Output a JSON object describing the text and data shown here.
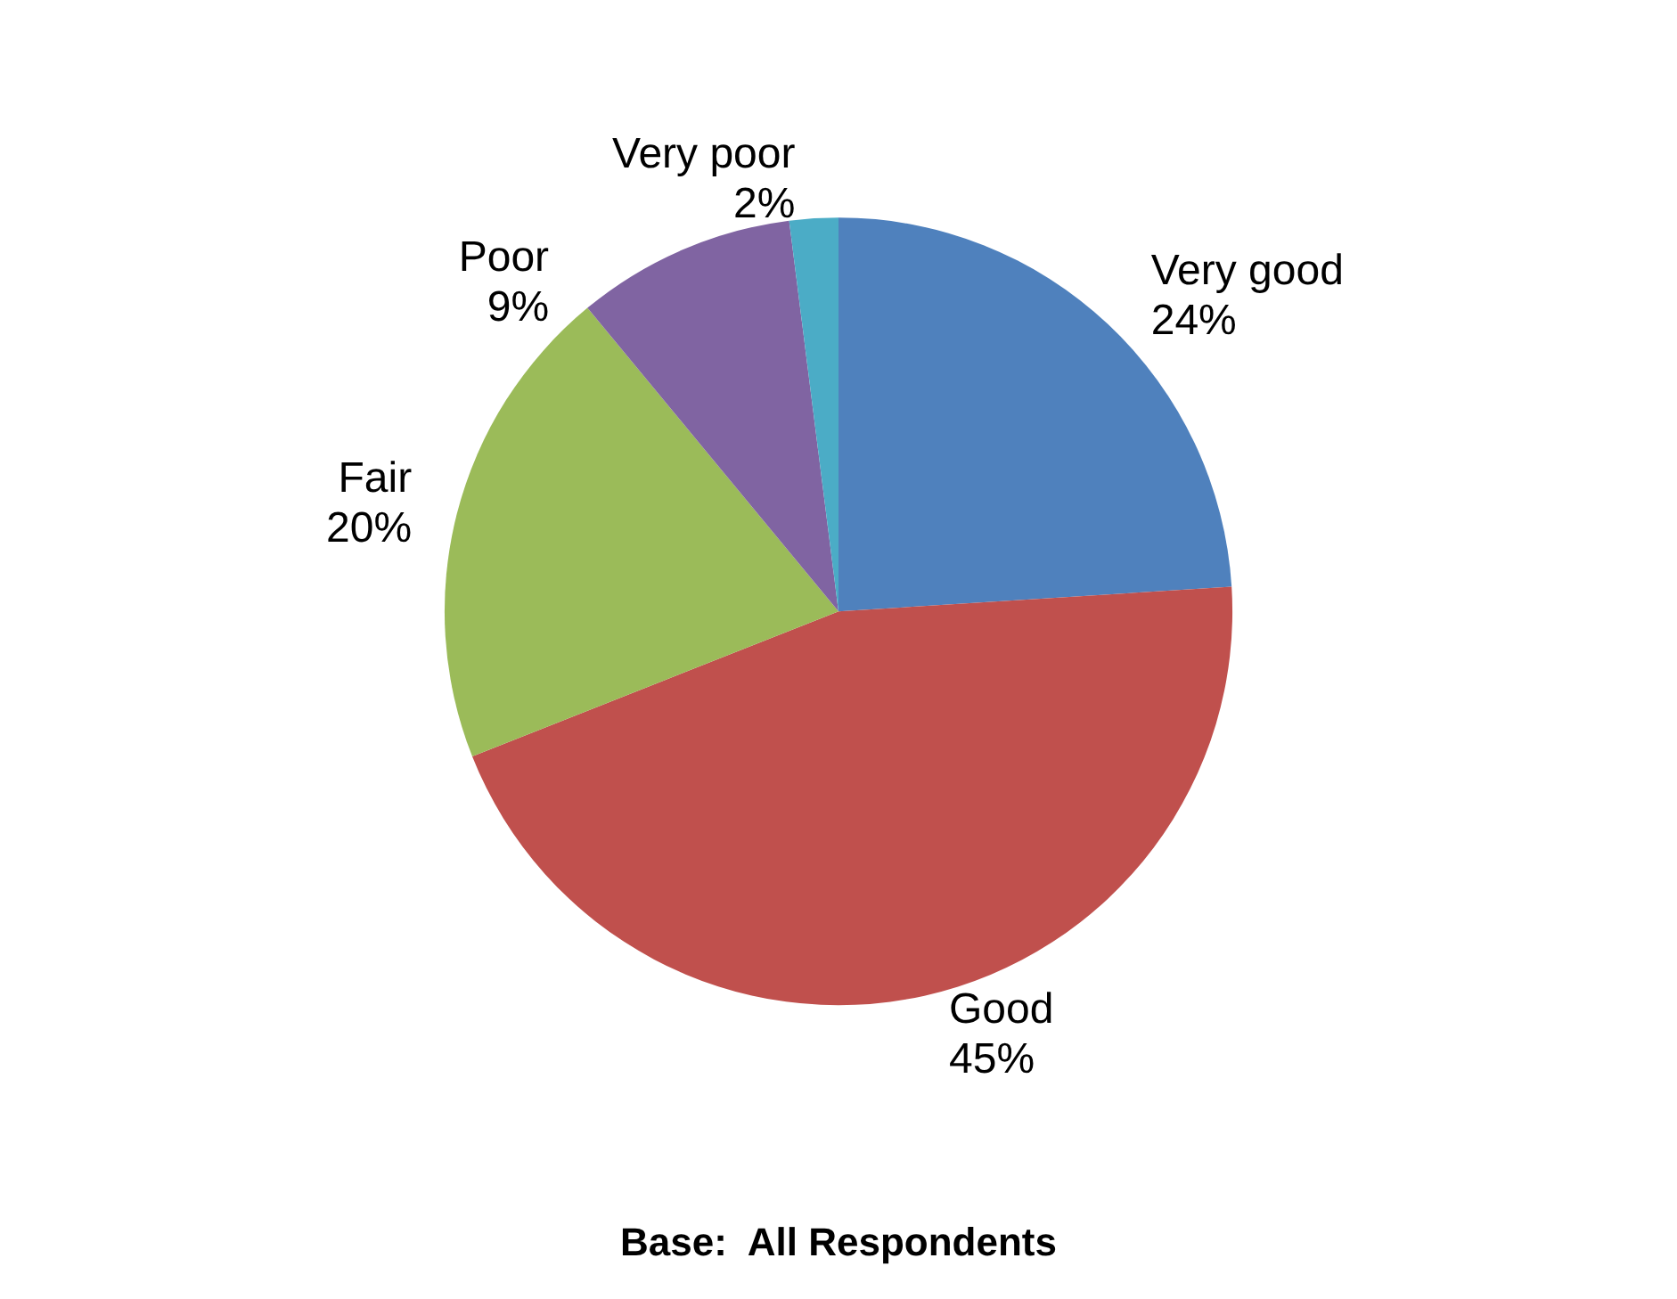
{
  "chart_data": {
    "type": "pie",
    "categories": [
      "Very good",
      "Good",
      "Fair",
      "Poor",
      "Very poor"
    ],
    "values": [
      24,
      45,
      20,
      9,
      2
    ],
    "value_labels": [
      "24%",
      "45%",
      "20%",
      "9%",
      "2%"
    ],
    "colors": [
      "#4f81bd",
      "#c0504d",
      "#9bbb59",
      "#8064a2",
      "#4bacc6"
    ],
    "annotations": [
      "Base:  All Respondents"
    ],
    "legend": false
  }
}
